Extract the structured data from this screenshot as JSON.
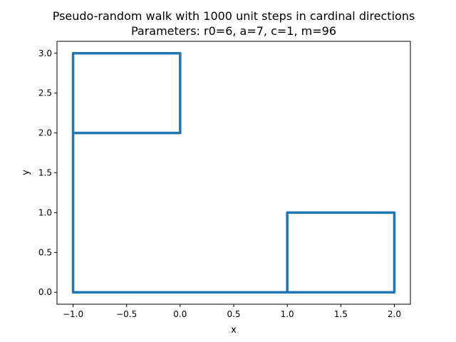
{
  "chart_data": {
    "type": "line",
    "title": "Pseudo-random walk with 1000 unit steps in cardinal directions",
    "subtitle": "Parameters: r0=6, a=7, c=1, m=96",
    "xlabel": "x",
    "ylabel": "y",
    "xlim": [
      -1.15,
      2.15
    ],
    "ylim": [
      -0.15,
      3.15
    ],
    "xticks": [
      "−1.0",
      "−0.5",
      "0.0",
      "0.5",
      "1.0",
      "1.5",
      "2.0"
    ],
    "yticks": [
      "0.0",
      "0.5",
      "1.0",
      "1.5",
      "2.0",
      "2.5",
      "3.0"
    ],
    "grid": false,
    "series": [
      {
        "color": "#1f77b4",
        "x": [
          0,
          1,
          2,
          2,
          1,
          1,
          0,
          -1,
          -1,
          -1,
          -1,
          0,
          0,
          -1,
          -1,
          -1,
          -1,
          0
        ],
        "y": [
          0,
          0,
          0,
          1,
          1,
          0,
          0,
          0,
          1,
          2,
          3,
          3,
          2,
          2,
          1,
          0,
          0,
          0
        ]
      }
    ]
  }
}
